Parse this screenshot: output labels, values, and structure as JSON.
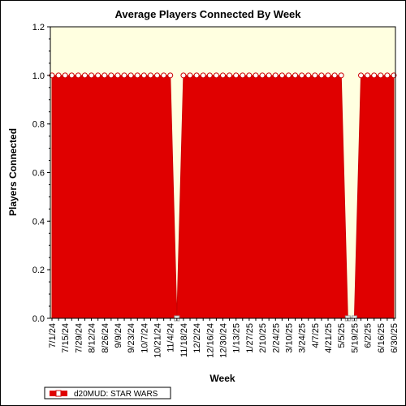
{
  "chart_data": {
    "type": "area",
    "title": "Average Players Connected By Week",
    "xlabel": "Week",
    "ylabel": "Players Connected",
    "ylim": [
      0,
      1.2
    ],
    "yticks": [
      "0.0",
      "0.2",
      "0.4",
      "0.6",
      "0.8",
      "1.0",
      "1.2"
    ],
    "x_tick_labels": [
      "7/1/24",
      "7/15/24",
      "7/29/24",
      "8/12/24",
      "8/26/24",
      "9/9/24",
      "9/23/24",
      "10/7/24",
      "10/21/24",
      "11/4/24",
      "11/18/24",
      "12/2/24",
      "12/16/24",
      "12/30/24",
      "1/13/25",
      "1/27/25",
      "2/10/25",
      "2/24/25",
      "3/10/25",
      "3/24/25",
      "4/7/25",
      "4/21/25",
      "5/5/25",
      "5/19/25",
      "6/2/25",
      "6/16/25",
      "6/30/25"
    ],
    "grid": false,
    "legend_position": "bottom-left",
    "colors": {
      "plot_background": "#ffffe0",
      "area_fill": "#e00000",
      "line": "#cc0000",
      "marker_fill": "#ffffff"
    },
    "series": [
      {
        "name": "d20MUD: STAR WARS",
        "x": [
          "7/1/24",
          "7/8/24",
          "7/15/24",
          "7/22/24",
          "7/29/24",
          "8/5/24",
          "8/12/24",
          "8/19/24",
          "8/26/24",
          "9/2/24",
          "9/9/24",
          "9/16/24",
          "9/23/24",
          "9/30/24",
          "10/7/24",
          "10/14/24",
          "10/21/24",
          "10/28/24",
          "11/4/24",
          "11/11/24",
          "11/18/24",
          "11/25/24",
          "12/2/24",
          "12/9/24",
          "12/16/24",
          "12/23/24",
          "12/30/24",
          "1/6/25",
          "1/13/25",
          "1/20/25",
          "1/27/25",
          "2/3/25",
          "2/10/25",
          "2/17/25",
          "2/24/25",
          "3/3/25",
          "3/10/25",
          "3/17/25",
          "3/24/25",
          "3/31/25",
          "4/7/25",
          "4/14/25",
          "4/21/25",
          "4/28/25",
          "5/5/25",
          "5/12/25",
          "5/19/25",
          "5/26/25",
          "6/2/25",
          "6/9/25",
          "6/16/25",
          "6/23/25",
          "6/30/25"
        ],
        "values": [
          1,
          1,
          1,
          1,
          1,
          1,
          1,
          1,
          1,
          1,
          1,
          1,
          1,
          1,
          1,
          1,
          1,
          1,
          1,
          0,
          1,
          1,
          1,
          1,
          1,
          1,
          1,
          1,
          1,
          1,
          1,
          1,
          1,
          1,
          1,
          1,
          1,
          1,
          1,
          1,
          1,
          1,
          1,
          1,
          1,
          0,
          0,
          1,
          1,
          1,
          1,
          1,
          1
        ]
      }
    ]
  }
}
